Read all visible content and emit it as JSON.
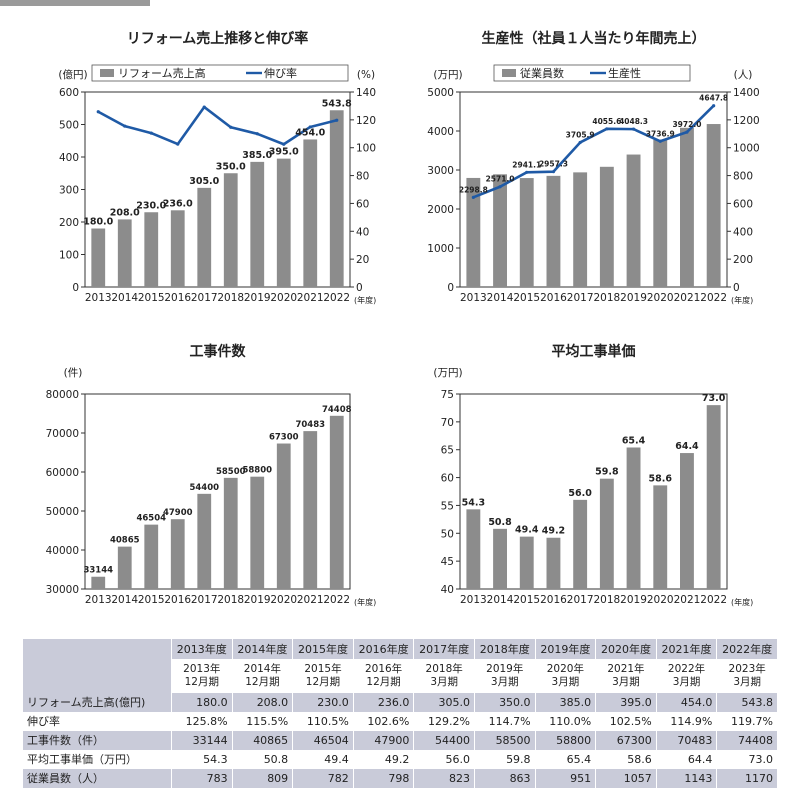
{
  "chart_data": [
    {
      "type": "bar+line",
      "title": "リフォーム売上推移と伸び率",
      "left_unit": "(億円)",
      "right_unit": "(%)",
      "x_unit": "(年度)",
      "categories": [
        "2013",
        "2014",
        "2015",
        "2016",
        "2017",
        "2018",
        "2019",
        "2020",
        "2021",
        "2022"
      ],
      "series": [
        {
          "name": "リフォーム売上高",
          "kind": "bar",
          "axis": "left",
          "values": [
            180.0,
            208.0,
            230.0,
            236.0,
            305.0,
            350.0,
            385.0,
            395.0,
            454.0,
            543.8
          ],
          "labels": [
            "180.0",
            "208.0",
            "230.0",
            "236.0",
            "305.0",
            "350.0",
            "385.0",
            "395.0",
            "454.0",
            "543.8"
          ]
        },
        {
          "name": "伸び率",
          "kind": "line",
          "axis": "right",
          "values": [
            125.8,
            115.5,
            110.5,
            102.6,
            129.2,
            114.7,
            110.0,
            102.5,
            114.9,
            119.7
          ]
        }
      ],
      "ylim_left": [
        0,
        600
      ],
      "ylim_right": [
        0,
        140
      ],
      "yticks_left": [
        "0",
        "100",
        "200",
        "300",
        "400",
        "500",
        "600"
      ],
      "yticks_right": [
        "0",
        "20",
        "40",
        "60",
        "80",
        "100",
        "120",
        "140"
      ],
      "legend": "top",
      "grid": false,
      "colors": {
        "bar": "#8c8c8c",
        "line": "#1f5aa6"
      }
    },
    {
      "type": "bar+line",
      "title": "生産性（社員１人当たり年間売上）",
      "left_unit": "(万円)",
      "right_unit": "(人)",
      "x_unit": "(年度)",
      "categories": [
        "2013",
        "2014",
        "2015",
        "2016",
        "2017",
        "2018",
        "2019",
        "2020",
        "2021",
        "2022"
      ],
      "series": [
        {
          "name": "従業員数",
          "kind": "bar",
          "axis": "right",
          "values": [
            783,
            809,
            782,
            798,
            823,
            863,
            951,
            1057,
            1143,
            1170
          ]
        },
        {
          "name": "生産性",
          "kind": "line",
          "axis": "left",
          "values": [
            2298.8,
            2571.0,
            2941.1,
            2957.3,
            3705.9,
            4055.6,
            4048.3,
            3736.9,
            3972.0,
            4647.8
          ],
          "labels": [
            "2298.8",
            "2571.0",
            "2941.1",
            "2957.3",
            "3705.9",
            "4055.6",
            "4048.3",
            "3736.9",
            "3972.0",
            "4647.8"
          ]
        }
      ],
      "ylim_left": [
        0,
        5000
      ],
      "ylim_right": [
        0,
        1400
      ],
      "yticks_left": [
        "0",
        "1000",
        "2000",
        "3000",
        "4000",
        "5000"
      ],
      "yticks_right": [
        "0",
        "200",
        "400",
        "600",
        "800",
        "1000",
        "1200",
        "1400"
      ],
      "legend": "top",
      "grid": false,
      "colors": {
        "bar": "#8c8c8c",
        "line": "#1f5aa6"
      }
    },
    {
      "type": "bar",
      "title": "工事件数",
      "left_unit": "(件)",
      "x_unit": "(年度)",
      "categories": [
        "2013",
        "2014",
        "2015",
        "2016",
        "2017",
        "2018",
        "2019",
        "2020",
        "2021",
        "2022"
      ],
      "values": [
        33144,
        40865,
        46504,
        47900,
        54400,
        58500,
        58800,
        67300,
        70483,
        74408
      ],
      "labels": [
        "33144",
        "40865",
        "46504",
        "47900",
        "54400",
        "58500",
        "58800",
        "67300",
        "70483",
        "74408"
      ],
      "ylim": [
        30000,
        80000
      ],
      "yticks": [
        "30000",
        "40000",
        "50000",
        "60000",
        "70000",
        "80000"
      ],
      "grid": false,
      "colors": {
        "bar": "#8c8c8c"
      }
    },
    {
      "type": "bar",
      "title": "平均工事単価",
      "left_unit": "(万円)",
      "x_unit": "(年度)",
      "categories": [
        "2013",
        "2014",
        "2015",
        "2016",
        "2017",
        "2018",
        "2019",
        "2020",
        "2021",
        "2022"
      ],
      "values": [
        54.3,
        50.8,
        49.4,
        49.2,
        56.0,
        59.8,
        65.4,
        58.6,
        64.4,
        73.0
      ],
      "labels": [
        "54.3",
        "50.8",
        "49.4",
        "49.2",
        "56.0",
        "59.8",
        "65.4",
        "58.6",
        "64.4",
        "73.0"
      ],
      "ylim": [
        40,
        75
      ],
      "yticks": [
        "40",
        "45",
        "50",
        "55",
        "60",
        "65",
        "70",
        "75"
      ],
      "grid": false,
      "colors": {
        "bar": "#8c8c8c"
      }
    },
    {
      "type": "table",
      "columns_fy": [
        "2013年度",
        "2014年度",
        "2015年度",
        "2016年度",
        "2017年度",
        "2018年度",
        "2019年度",
        "2020年度",
        "2021年度",
        "2022年度"
      ],
      "columns_period_1": [
        "2013年",
        "2014年",
        "2015年",
        "2016年",
        "2018年",
        "2019年",
        "2020年",
        "2021年",
        "2022年",
        "2023年"
      ],
      "columns_period_2": [
        "12月期",
        "12月期",
        "12月期",
        "12月期",
        "3月期",
        "3月期",
        "3月期",
        "3月期",
        "3月期",
        "3月期"
      ],
      "rows": [
        {
          "label": "リフォーム売上高(億円)",
          "values": [
            "180.0",
            "208.0",
            "230.0",
            "236.0",
            "305.0",
            "350.0",
            "385.0",
            "395.0",
            "454.0",
            "543.8"
          ]
        },
        {
          "label": "伸び率",
          "values": [
            "125.8%",
            "115.5%",
            "110.5%",
            "102.6%",
            "129.2%",
            "114.7%",
            "110.0%",
            "102.5%",
            "114.9%",
            "119.7%"
          ]
        },
        {
          "label": "工事件数（件）",
          "values": [
            "33144",
            "40865",
            "46504",
            "47900",
            "54400",
            "58500",
            "58800",
            "67300",
            "70483",
            "74408"
          ]
        },
        {
          "label": "平均工事単価（万円）",
          "values": [
            "54.3",
            "50.8",
            "49.4",
            "49.2",
            "56.0",
            "59.8",
            "65.4",
            "58.6",
            "64.4",
            "73.0"
          ]
        },
        {
          "label": "従業員数（人）",
          "values": [
            "783",
            "809",
            "782",
            "798",
            "823",
            "863",
            "951",
            "1057",
            "1143",
            "1170"
          ]
        }
      ]
    }
  ]
}
